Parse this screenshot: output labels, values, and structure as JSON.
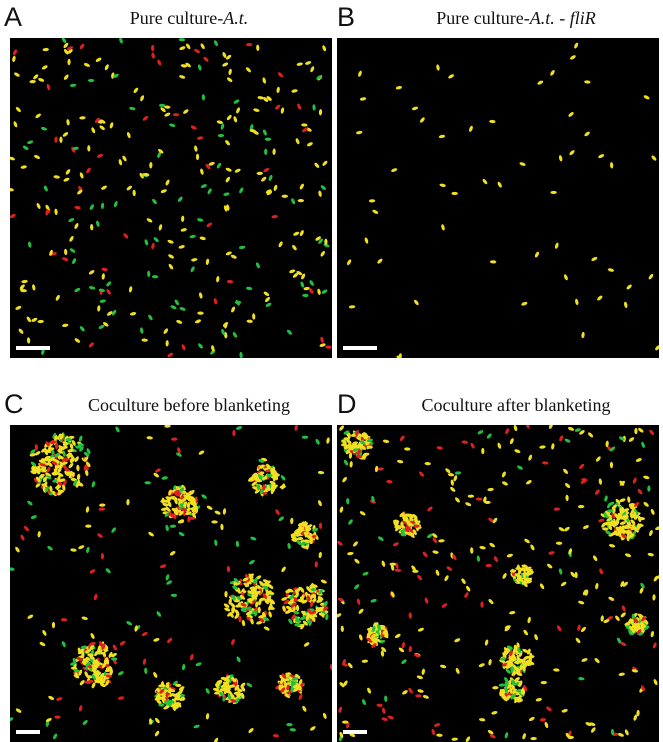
{
  "panels": [
    {
      "label": "A",
      "title": [
        "Pure culture-",
        "A.t."
      ]
    },
    {
      "label": "B",
      "title": [
        "Pure culture-",
        "A.t.",
        " - ",
        "fliR"
      ]
    },
    {
      "label": "C",
      "title": [
        "Coculture before blanketing"
      ]
    },
    {
      "label": "D",
      "title": [
        "Coculture after blanketing"
      ]
    }
  ]
}
